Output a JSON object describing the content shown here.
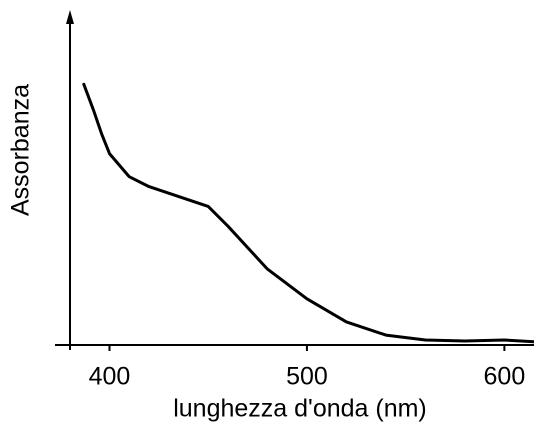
{
  "chart_data": {
    "type": "line",
    "x_label": "lunghezza d'onda (nm)",
    "y_label": "Assorbanza",
    "x": [
      387,
      392,
      396,
      400,
      410,
      420,
      440,
      450,
      460,
      480,
      500,
      520,
      540,
      560,
      580,
      600,
      615
    ],
    "series": [
      {
        "name": "Assorbanza",
        "color": "#000000",
        "values": [
          0.79,
          0.71,
          0.64,
          0.58,
          0.51,
          0.48,
          0.44,
          0.42,
          0.36,
          0.23,
          0.14,
          0.07,
          0.03,
          0.015,
          0.012,
          0.015,
          0.01
        ]
      }
    ],
    "xlim": [
      380,
      615
    ],
    "xticks": [
      400,
      500,
      600
    ],
    "ylim": [
      0,
      1
    ]
  }
}
